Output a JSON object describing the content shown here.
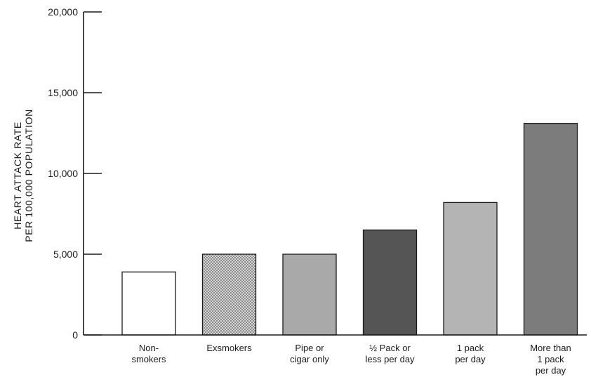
{
  "chart_data": {
    "type": "bar",
    "ylabel_lines": [
      "HEART ATTACK RATE",
      "PER 100,000 POPULATION"
    ],
    "ylim": [
      0,
      20000
    ],
    "yticks": [
      {
        "value": 0,
        "label": "0"
      },
      {
        "value": 5000,
        "label": "5,000"
      },
      {
        "value": 10000,
        "label": "10,000"
      },
      {
        "value": 15000,
        "label": "15,000"
      },
      {
        "value": 20000,
        "label": "20,000"
      }
    ],
    "categories": [
      {
        "lines": [
          "Non-",
          "smokers"
        ],
        "value": 3900,
        "fill": "#ffffff",
        "pattern": "none"
      },
      {
        "lines": [
          "Exsmokers"
        ],
        "value": 5000,
        "fill": "#c9c9c9",
        "pattern": "dots"
      },
      {
        "lines": [
          "Pipe or",
          "cigar only"
        ],
        "value": 5000,
        "fill": "#a9a9a9",
        "pattern": "none"
      },
      {
        "lines": [
          "½ Pack or",
          "less per day"
        ],
        "value": 6500,
        "fill": "#555555",
        "pattern": "none"
      },
      {
        "lines": [
          "1 pack",
          "per day"
        ],
        "value": 8200,
        "fill": "#b4b4b4",
        "pattern": "none"
      },
      {
        "lines": [
          "More than",
          "1 pack",
          "per day"
        ],
        "value": 13100,
        "fill": "#7c7c7c",
        "pattern": "none"
      }
    ],
    "grid": false,
    "legend": "none"
  }
}
